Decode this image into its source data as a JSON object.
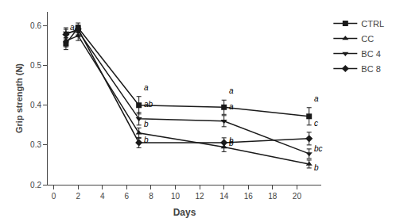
{
  "chart_data": {
    "type": "line",
    "x": [
      1,
      2,
      7,
      14,
      21
    ],
    "series": [
      {
        "name": "CTRL",
        "values": [
          0.555,
          0.595,
          0.4,
          0.395,
          0.372
        ],
        "errors": [
          0.015,
          0.012,
          0.022,
          0.018,
          0.022
        ],
        "marker": "square"
      },
      {
        "name": "CC",
        "values": [
          0.562,
          0.575,
          0.33,
          0.295,
          0.252
        ],
        "errors": [
          0.015,
          0.012,
          0.013,
          0.012,
          0.01
        ],
        "marker": "triangle-up"
      },
      {
        "name": "BC 4",
        "values": [
          0.582,
          0.587,
          0.366,
          0.36,
          0.278
        ],
        "errors": [
          0.013,
          0.01,
          0.016,
          0.014,
          0.012
        ],
        "marker": "triangle-down"
      },
      {
        "name": "BC 8",
        "values": [
          0.578,
          0.592,
          0.306,
          0.306,
          0.316
        ],
        "errors": [
          0.013,
          0.01,
          0.013,
          0.012,
          0.016
        ],
        "marker": "diamond"
      }
    ],
    "color": "#1a1a1a",
    "xlabel": "Days",
    "ylabel": "Grip strength (N)",
    "xlim": [
      -0.5,
      22
    ],
    "ylim": [
      0.2,
      0.635
    ],
    "xticks": [
      0,
      2,
      4,
      6,
      8,
      10,
      12,
      14,
      16,
      18,
      20
    ],
    "yticks": [
      0.2,
      0.3,
      0.4,
      0.5,
      0.6
    ],
    "grid": false,
    "legend": "right",
    "annotations": [
      {
        "text": "a",
        "x": 1,
        "series": "CTRL"
      },
      {
        "text": "a",
        "x": 7,
        "series": "CTRL"
      },
      {
        "text": "ab",
        "x": 7,
        "series": "BC 4"
      },
      {
        "text": "b",
        "x": 7,
        "series": "CC"
      },
      {
        "text": "b",
        "x": 7,
        "series": "BC 8"
      },
      {
        "text": "a",
        "x": 14,
        "series": "CTRL"
      },
      {
        "text": "a",
        "x": 14,
        "series": "BC 4"
      },
      {
        "text": "b",
        "x": 14,
        "series": "CC"
      },
      {
        "text": "b",
        "x": 14,
        "series": "BC 8"
      },
      {
        "text": "a",
        "x": 21,
        "series": "CTRL"
      },
      {
        "text": "c",
        "x": 21,
        "series": "BC 8"
      },
      {
        "text": "bc",
        "x": 21,
        "series": "BC 4"
      },
      {
        "text": "b",
        "x": 21,
        "series": "CC"
      }
    ]
  }
}
